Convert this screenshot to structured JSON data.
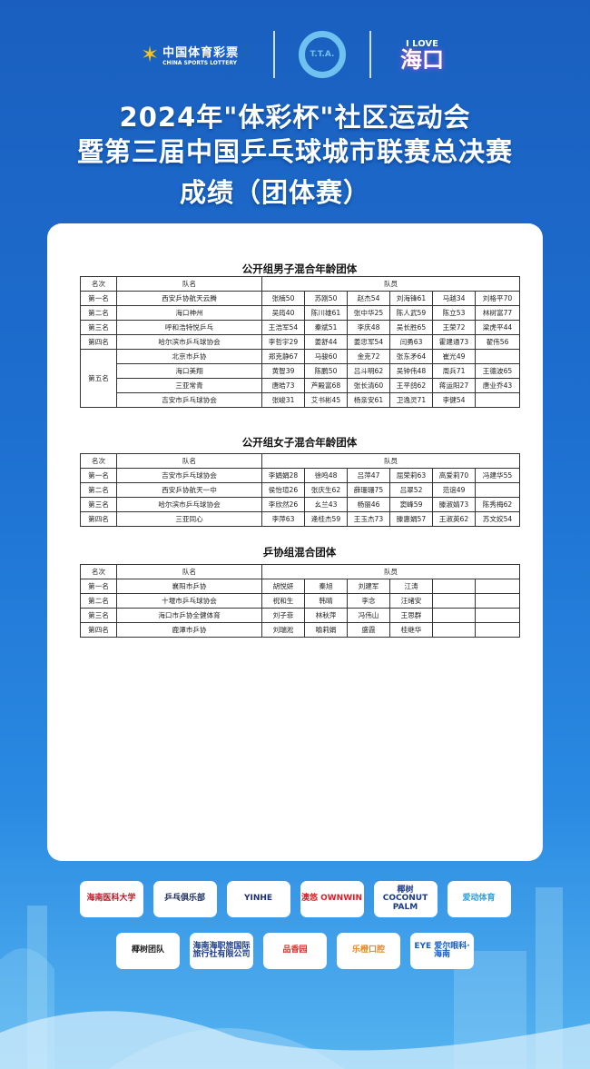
{
  "header": {
    "logos": {
      "lottery_cn": "中国体育彩票",
      "lottery_en": "CHINA SPORTS LOTTERY",
      "ttf": "T.T.A.",
      "ilove_top": "I LOVE",
      "ilove_main": "海口"
    },
    "title_line1": "2024年\"体彩杯\"社区运动会",
    "title_line2": "暨第三届中国乒乓球城市联赛总决赛",
    "title_line3": "成绩（团体赛）"
  },
  "columns": {
    "rank": "名次",
    "team": "队名",
    "members": "队员"
  },
  "sections": [
    {
      "title": "公开组男子混合年龄团体",
      "rankings": [
        {
          "rank": "第一名",
          "teams": [
            {
              "name": "西安乒协航天云腾",
              "members": [
                "张楠50",
                "苏刚50",
                "赵杰54",
                "刘海锋61",
                "马越34",
                "刘格平70"
              ]
            }
          ]
        },
        {
          "rank": "第二名",
          "teams": [
            {
              "name": "海口神州",
              "members": [
                "吴筠40",
                "陈川雄61",
                "张中华25",
                "陈人武59",
                "陈立53",
                "林树富77"
              ]
            }
          ]
        },
        {
          "rank": "第三名",
          "teams": [
            {
              "name": "呼和浩特悦乒乓",
              "members": [
                "王浩军54",
                "秦斌51",
                "李庆48",
                "吴长胜65",
                "王荣72",
                "梁虎平44"
              ]
            }
          ]
        },
        {
          "rank": "第四名",
          "teams": [
            {
              "name": "哈尔滨市乒乓球协会",
              "members": [
                "李哲宇29",
                "姜舒44",
                "姜忠军54",
                "闫勇63",
                "霍建通73",
                "翟伟56"
              ]
            }
          ]
        },
        {
          "rank": "第五名",
          "teams": [
            {
              "name": "北京市乒协",
              "members": [
                "郑克静67",
                "马骏60",
                "金克72",
                "张东矛64",
                "崔光49",
                ""
              ]
            },
            {
              "name": "海口美翔",
              "members": [
                "黄智39",
                "陈鹏50",
                "吕斗明62",
                "吴钟伟48",
                "周兵71",
                "王德波65"
              ]
            },
            {
              "name": "三亚常青",
              "members": [
                "唐皓73",
                "芦殿富68",
                "张长清60",
                "王平鸽62",
                "蒋运阳27",
                "唐业乔43"
              ]
            },
            {
              "name": "吉安市乒乓球协会",
              "members": [
                "张峻31",
                "艾书彬45",
                "杨亲安61",
                "卫逸灵71",
                "李健54",
                ""
              ]
            }
          ]
        }
      ]
    },
    {
      "title": "公开组女子混合年龄团体",
      "rankings": [
        {
          "rank": "第一名",
          "teams": [
            {
              "name": "吉安市乒乓球协会",
              "members": [
                "李娟娟28",
                "徐鸣48",
                "吕萍47",
                "屈荣莉63",
                "高爱莉70",
                "冯建华55"
              ]
            }
          ]
        },
        {
          "rank": "第二名",
          "teams": [
            {
              "name": "西安乒协航天一中",
              "members": [
                "侯怡瑄26",
                "张庆生62",
                "薛珊珊75",
                "吕翠52",
                "范谊49",
                ""
              ]
            }
          ]
        },
        {
          "rank": "第三名",
          "teams": [
            {
              "name": "哈尔滨市乒乓球协会",
              "members": [
                "李欣然26",
                "幺兰43",
                "杨丽46",
                "窦峰59",
                "滕淑婧73",
                "陈秀梅62"
              ]
            }
          ]
        },
        {
          "rank": "第四名",
          "teams": [
            {
              "name": "三亚同心",
              "members": [
                "李萍63",
                "逄桂杰59",
                "王玉杰73",
                "滕惠娟57",
                "王淑英62",
                "苏文姣54"
              ]
            }
          ]
        }
      ]
    },
    {
      "title": "乒协组混合团体",
      "rankings": [
        {
          "rank": "第一名",
          "teams": [
            {
              "name": "襄阳市乒协",
              "members": [
                "胡悦妍",
                "秦旭",
                "刘建军",
                "江涛",
                "",
                ""
              ]
            }
          ]
        },
        {
          "rank": "第二名",
          "teams": [
            {
              "name": "十堰市乒乓球协会",
              "members": [
                "祝和生",
                "韩晴",
                "李念",
                "汪绪安",
                "",
                ""
              ]
            }
          ]
        },
        {
          "rank": "第三名",
          "teams": [
            {
              "name": "海口市乒协全健体育",
              "members": [
                "刘子菲",
                "林秋萍",
                "冯伟山",
                "王思群",
                "",
                ""
              ]
            }
          ]
        },
        {
          "rank": "第四名",
          "teams": [
            {
              "name": "鹿潭市乒协",
              "members": [
                "刘瑞淞",
                "喻莉娟",
                "盛霞",
                "桂继华",
                "",
                ""
              ]
            }
          ]
        }
      ]
    }
  ],
  "sponsors": {
    "row1": [
      {
        "label": "海南医科大学",
        "color": "#b3202a"
      },
      {
        "label": "乒乓俱乐部",
        "color": "#1a2a5a"
      },
      {
        "label": "YINHE",
        "color": "#1a2f7a"
      },
      {
        "label": "澳悠 OWNWIN",
        "color": "#d8202a"
      },
      {
        "label": "椰树 COCONUT PALM",
        "color": "#1a3a8a"
      },
      {
        "label": "爱动体育",
        "color": "#2aa0e0"
      }
    ],
    "row2": [
      {
        "label": "椰树团队",
        "color": "#222222"
      },
      {
        "label": "海南海职旅国际旅行社有限公司",
        "color": "#1a3a8a"
      },
      {
        "label": "品香园",
        "color": "#d8302a"
      },
      {
        "label": "乐橙口腔",
        "color": "#e08a20"
      },
      {
        "label": "EYE 爱尔眼科·海南",
        "color": "#1a5fbf"
      }
    ]
  }
}
